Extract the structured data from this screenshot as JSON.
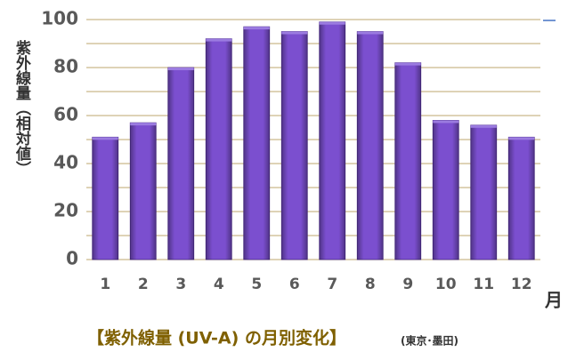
{
  "chart_data": {
    "type": "bar",
    "title": "【紫外線量 (UV-A) の月別変化】",
    "subtitle": "(東京･墨田)",
    "y_label": "紫外線量（相対値）",
    "x_label": "月",
    "categories": [
      "1",
      "2",
      "3",
      "4",
      "5",
      "6",
      "7",
      "8",
      "9",
      "10",
      "11",
      "12"
    ],
    "values": [
      51,
      57,
      80,
      92,
      97,
      95,
      99,
      95,
      82,
      58,
      56,
      51
    ],
    "color": "#7b4fcf",
    "ylim": [
      0,
      100
    ],
    "yticks": [
      0,
      20,
      40,
      60,
      80,
      100
    ],
    "minor_yticks": [
      10,
      30,
      50,
      70,
      90
    ],
    "grid": true,
    "grid_color": "#c9b98a"
  }
}
